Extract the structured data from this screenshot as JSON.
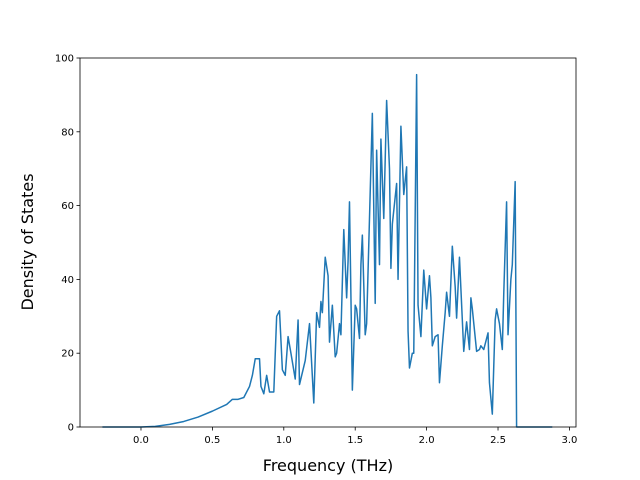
{
  "chart_data": {
    "type": "line",
    "xlabel": "Frequency (THz)",
    "ylabel": "Density of States",
    "color": "#1f77b4",
    "x": [
      -0.27,
      0.0,
      0.1,
      0.2,
      0.3,
      0.4,
      0.5,
      0.6,
      0.64,
      0.68,
      0.72,
      0.76,
      0.78,
      0.8,
      0.83,
      0.84,
      0.86,
      0.88,
      0.9,
      0.93,
      0.95,
      0.97,
      0.99,
      1.01,
      1.03,
      1.05,
      1.08,
      1.1,
      1.11,
      1.15,
      1.18,
      1.21,
      1.23,
      1.25,
      1.26,
      1.27,
      1.29,
      1.31,
      1.32,
      1.34,
      1.36,
      1.37,
      1.39,
      1.4,
      1.42,
      1.44,
      1.45,
      1.46,
      1.48,
      1.5,
      1.51,
      1.53,
      1.54,
      1.55,
      1.57,
      1.58,
      1.62,
      1.64,
      1.65,
      1.67,
      1.68,
      1.7,
      1.72,
      1.74,
      1.75,
      1.76,
      1.79,
      1.8,
      1.82,
      1.84,
      1.86,
      1.87,
      1.88,
      1.9,
      1.91,
      1.93,
      1.94,
      1.96,
      1.98,
      2.0,
      2.02,
      2.03,
      2.04,
      2.06,
      2.08,
      2.09,
      2.11,
      2.13,
      2.14,
      2.16,
      2.18,
      2.2,
      2.21,
      2.23,
      2.24,
      2.26,
      2.28,
      2.3,
      2.31,
      2.32,
      2.35,
      2.37,
      2.38,
      2.4,
      2.42,
      2.43,
      2.44,
      2.46,
      2.48,
      2.49,
      2.51,
      2.53,
      2.54,
      2.56,
      2.57,
      2.59,
      2.6,
      2.62,
      2.63,
      2.88
    ],
    "values": [
      0,
      0,
      0.17,
      0.7,
      1.5,
      2.7,
      4.3,
      6.1,
      7.5,
      7.5,
      8,
      11,
      14,
      18.5,
      18.5,
      11,
      9,
      14,
      9.5,
      9.5,
      30,
      31.5,
      15.5,
      14,
      24.5,
      20,
      13,
      29,
      11.5,
      18,
      28,
      6.5,
      31,
      27,
      34,
      31,
      46,
      41,
      23,
      33,
      19,
      20,
      28,
      25,
      53.5,
      35,
      45,
      61,
      10,
      33,
      32,
      24,
      44,
      52,
      25,
      28,
      85,
      33.5,
      75,
      44,
      78,
      56.5,
      88.5,
      70,
      43,
      55,
      66,
      40,
      81.5,
      63,
      70.5,
      26,
      16,
      20,
      20,
      95.5,
      33,
      24.5,
      42.5,
      32,
      41,
      35,
      22,
      24.5,
      25,
      12,
      22,
      31,
      36.5,
      30,
      49,
      38,
      29.5,
      46,
      37.5,
      20.5,
      28.5,
      21,
      35,
      32,
      20.5,
      21,
      22,
      21,
      24,
      25.5,
      12,
      3.5,
      29,
      32,
      28,
      21,
      36,
      61,
      25,
      40,
      44,
      66.5,
      0,
      0
    ],
    "xlim": [
      -0.427,
      3.046
    ],
    "ylim": [
      0,
      100
    ],
    "xticks": [
      {
        "value": 0,
        "label": "0.0"
      },
      {
        "value": 0.5,
        "label": "0.5"
      },
      {
        "value": 1,
        "label": "1.0"
      },
      {
        "value": 1.5,
        "label": "1.5"
      },
      {
        "value": 2,
        "label": "2.0"
      },
      {
        "value": 2.5,
        "label": "2.5"
      },
      {
        "value": 3,
        "label": "3.0"
      }
    ],
    "yticks": [
      0,
      20,
      40,
      60,
      80,
      100
    ]
  }
}
